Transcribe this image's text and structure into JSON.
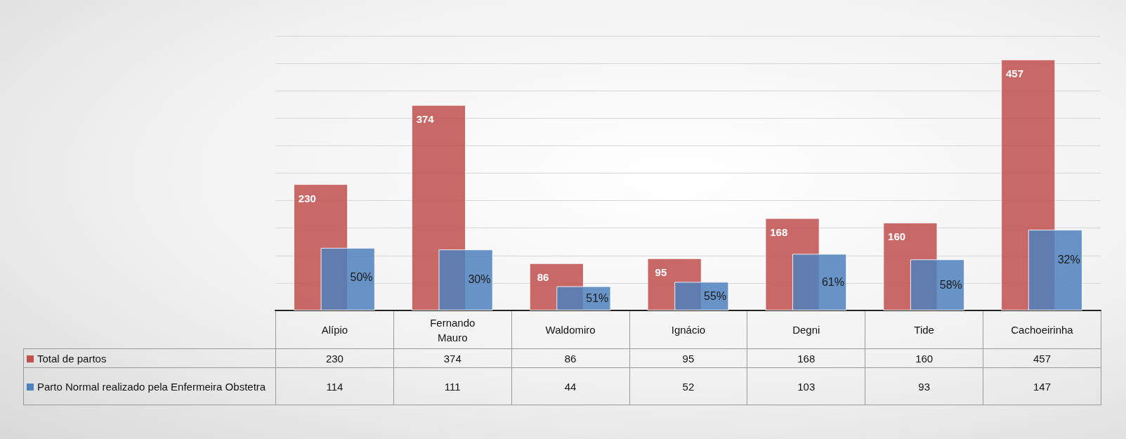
{
  "chart_data": {
    "type": "bar",
    "categories": [
      "Alípio",
      "Fernando Mauro",
      "Waldomiro",
      "Ignácio",
      "Degni",
      "Tide",
      "Cachoeirinha"
    ],
    "series": [
      {
        "name": "Total de partos",
        "color": "#c0504d",
        "values": [
          230,
          374,
          86,
          95,
          168,
          160,
          457
        ]
      },
      {
        "name": "Parto Normal realizado pela Enfermeira Obstetra",
        "color": "#4f81bd",
        "values": [
          114,
          111,
          44,
          52,
          103,
          93,
          147
        ]
      }
    ],
    "annotations": [
      {
        "text": "230",
        "x": "Alípio",
        "y": 230
      },
      {
        "text": "374",
        "x": "Fernando Mauro",
        "y": 374
      },
      {
        "text": "86",
        "x": "Waldomiro",
        "y": 86
      },
      {
        "text": "95",
        "x": "Ignácio",
        "y": 95
      },
      {
        "text": "168",
        "x": "Degni",
        "y": 168
      },
      {
        "text": "160",
        "x": "Tide",
        "y": 160
      },
      {
        "text": "457",
        "x": "Cachoeirinha",
        "y": 457
      },
      {
        "text": "50%",
        "x": "Alípio",
        "y": 114
      },
      {
        "text": "30%",
        "x": "Fernando Mauro",
        "y": 111
      },
      {
        "text": "51%",
        "x": "Waldomiro",
        "y": 44
      },
      {
        "text": "55%",
        "x": "Ignácio",
        "y": 52
      },
      {
        "text": "61%",
        "x": "Degni",
        "y": 103
      },
      {
        "text": "58%",
        "x": "Tide",
        "y": 93
      },
      {
        "text": "32%",
        "x": "Cachoeirinha",
        "y": 147
      }
    ],
    "ylim": [
      0,
      500
    ],
    "yticks": [
      {
        "value": 0,
        "label": null
      },
      {
        "value": 50,
        "label": null
      },
      {
        "value": 100,
        "label": null
      },
      {
        "value": 150,
        "label": null
      },
      {
        "value": 200,
        "label": null
      },
      {
        "value": 250,
        "label": null
      },
      {
        "value": 300,
        "label": null
      },
      {
        "value": 350,
        "label": null
      },
      {
        "value": 400,
        "label": null
      },
      {
        "value": 450,
        "label": null
      },
      {
        "value": 500,
        "label": null
      }
    ],
    "tick_labels": "x",
    "grid": "y",
    "legend": "bottom left",
    "data_labels": true
  }
}
